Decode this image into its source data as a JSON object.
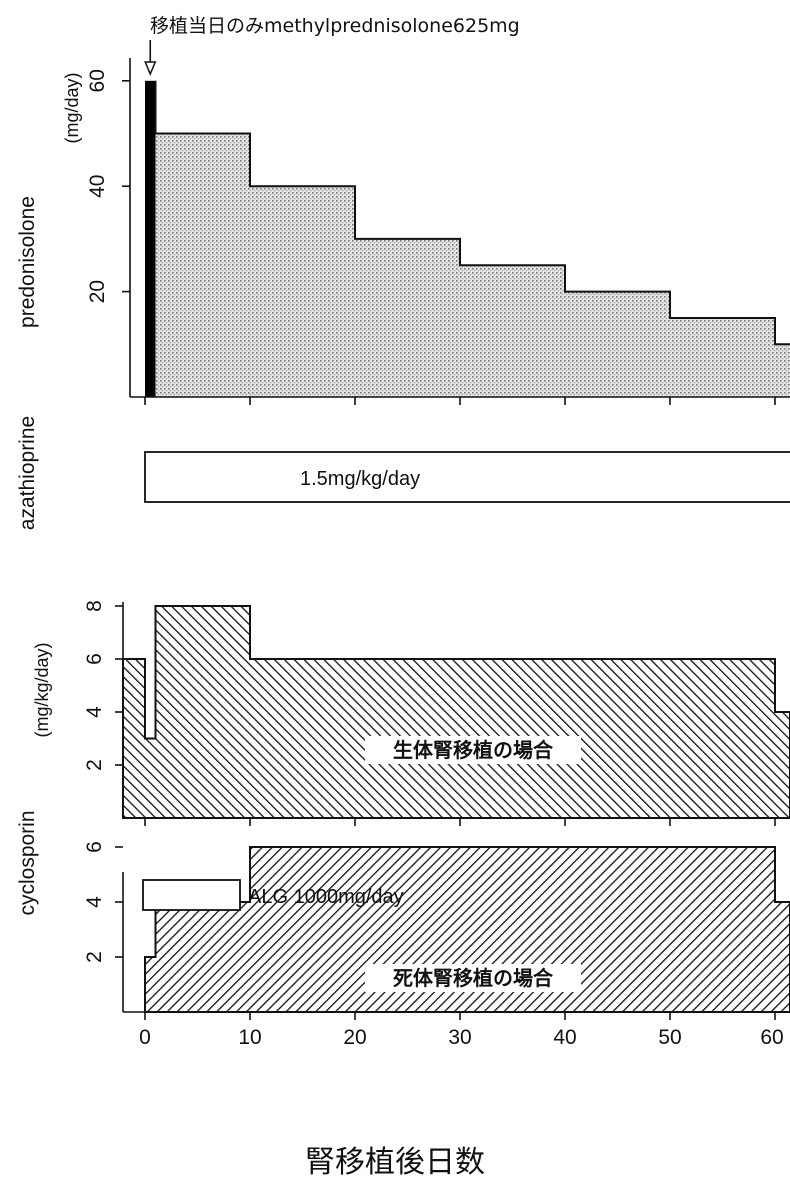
{
  "chart_data": [
    {
      "panel": "predonisolone",
      "type": "area",
      "annotation": "移植当日のみmethylprednisolone625mg",
      "ylabel": "predonisolone",
      "yunit": "(mg/day)",
      "yticks": [
        20,
        40,
        60
      ],
      "ylim": [
        0,
        62
      ],
      "xlim": [
        -2,
        62
      ],
      "methylprednisolone_bar": {
        "x_start": 0,
        "x_end": 1,
        "value": 60
      },
      "steps": [
        {
          "x_start": 1,
          "x_end": 10,
          "value": 50
        },
        {
          "x_start": 10,
          "x_end": 20,
          "value": 40
        },
        {
          "x_start": 20,
          "x_end": 30,
          "value": 30
        },
        {
          "x_start": 30,
          "x_end": 40,
          "value": 25
        },
        {
          "x_start": 40,
          "x_end": 50,
          "value": 20
        },
        {
          "x_start": 50,
          "x_end": 60,
          "value": 15
        },
        {
          "x_start": 60,
          "x_end": 62,
          "value": 10
        }
      ],
      "colors": {
        "fill": "#c8c8c8",
        "bar": "#000000"
      }
    },
    {
      "panel": "azathioprine",
      "type": "bar",
      "ylabel": "azathioprine",
      "dose_label": "1.5mg/kg/day",
      "x_start": 0,
      "x_end": 62
    },
    {
      "panel": "cyclosporin-living",
      "type": "area",
      "title": "生体腎移植の場合",
      "yunit": "(mg/kg/day)",
      "yticks": [
        2,
        4,
        6,
        8
      ],
      "ylim": [
        0,
        8.4
      ],
      "xlim": [
        -2,
        62
      ],
      "points": [
        [
          -2,
          6
        ],
        [
          0,
          6
        ],
        [
          0,
          3
        ],
        [
          1,
          3
        ],
        [
          1,
          8
        ],
        [
          10,
          8
        ],
        [
          10,
          6
        ],
        [
          60,
          6
        ],
        [
          60,
          4
        ],
        [
          62,
          4
        ]
      ],
      "hatch": "backslash"
    },
    {
      "panel": "cyclosporin-cadaveric",
      "type": "area",
      "title": "死体腎移植の場合",
      "ylabel": "cyclosporin",
      "legend": "ALG 1000mg/day",
      "yticks": [
        2,
        4,
        6
      ],
      "ylim": [
        0,
        8.4
      ],
      "xlim": [
        -2,
        62
      ],
      "points": [
        [
          0,
          0
        ],
        [
          0,
          2
        ],
        [
          1,
          2
        ],
        [
          1,
          4
        ],
        [
          10,
          4
        ],
        [
          10,
          6
        ],
        [
          60,
          6
        ],
        [
          60,
          4
        ],
        [
          62,
          4
        ]
      ],
      "hatch": "slash",
      "xticks": [
        0,
        10,
        20,
        30,
        40,
        50,
        60
      ],
      "xlabel": "腎移植後日数"
    }
  ]
}
